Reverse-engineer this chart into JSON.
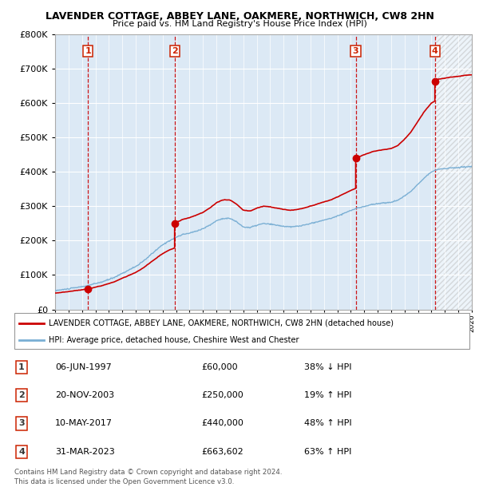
{
  "title": "LAVENDER COTTAGE, ABBEY LANE, OAKMERE, NORTHWICH, CW8 2HN",
  "subtitle": "Price paid vs. HM Land Registry's House Price Index (HPI)",
  "sales": [
    {
      "num": 1,
      "year": 1997.44,
      "price": 60000,
      "date": "06-JUN-1997",
      "pct": "38%",
      "dir": "↓"
    },
    {
      "num": 2,
      "year": 2003.89,
      "price": 250000,
      "date": "20-NOV-2003",
      "pct": "19%",
      "dir": "↑"
    },
    {
      "num": 3,
      "year": 2017.36,
      "price": 440000,
      "date": "10-MAY-2017",
      "pct": "48%",
      "dir": "↑"
    },
    {
      "num": 4,
      "year": 2023.25,
      "price": 663602,
      "date": "31-MAR-2023",
      "pct": "63%",
      "dir": "↑"
    }
  ],
  "legend_line1": "LAVENDER COTTAGE, ABBEY LANE, OAKMERE, NORTHWICH, CW8 2HN (detached house)",
  "legend_line2": "HPI: Average price, detached house, Cheshire West and Chester",
  "footnote1": "Contains HM Land Registry data © Crown copyright and database right 2024.",
  "footnote2": "This data is licensed under the Open Government Licence v3.0.",
  "price_line_color": "#cc0000",
  "hpi_line_color": "#7aafd4",
  "dashed_color": "#cc0000",
  "plot_bg": "#dce9f5",
  "xmin": 1995,
  "xmax": 2026,
  "ymin": 0,
  "ymax": 800000
}
